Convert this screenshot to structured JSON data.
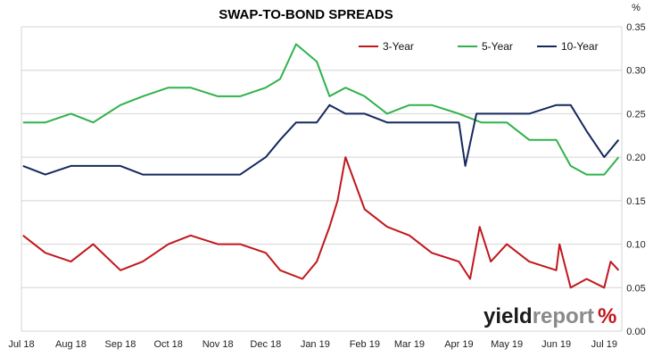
{
  "chart_data": {
    "type": "line",
    "title": "SWAP-TO-BOND SPREADS",
    "y_unit": "%",
    "ylim": [
      0,
      0.35
    ],
    "yticks": [
      "0.00",
      "0.05",
      "0.10",
      "0.15",
      "0.20",
      "0.25",
      "0.30",
      "0.35"
    ],
    "xticks": [
      "Jul 18",
      "Aug 18",
      "Sep 18",
      "Oct 18",
      "Nov 18",
      "Dec 18",
      "Jan 19",
      "Feb 19",
      "Mar 19",
      "Apr 19",
      "May 19",
      "Jun 19",
      "Jul 19"
    ],
    "x_start": "2018-07-01",
    "x_end": "2019-07-12",
    "grid": "horizontal",
    "legend_position": "top-right",
    "series": [
      {
        "name": "3-Year",
        "color": "#c0171c",
        "x": [
          "2018-07-02",
          "2018-07-16",
          "2018-08-01",
          "2018-08-15",
          "2018-09-01",
          "2018-09-15",
          "2018-10-01",
          "2018-10-15",
          "2018-11-01",
          "2018-11-15",
          "2018-12-01",
          "2018-12-10",
          "2018-12-24",
          "2019-01-02",
          "2019-01-10",
          "2019-01-15",
          "2019-01-20",
          "2019-02-01",
          "2019-02-15",
          "2019-03-01",
          "2019-03-15",
          "2019-04-01",
          "2019-04-08",
          "2019-04-14",
          "2019-04-21",
          "2019-05-01",
          "2019-05-15",
          "2019-06-01",
          "2019-06-03",
          "2019-06-10",
          "2019-06-20",
          "2019-07-01",
          "2019-07-05",
          "2019-07-10"
        ],
        "y": [
          0.11,
          0.09,
          0.08,
          0.1,
          0.07,
          0.08,
          0.1,
          0.11,
          0.1,
          0.1,
          0.09,
          0.07,
          0.06,
          0.08,
          0.12,
          0.15,
          0.2,
          0.14,
          0.12,
          0.11,
          0.09,
          0.08,
          0.06,
          0.12,
          0.08,
          0.1,
          0.08,
          0.07,
          0.1,
          0.05,
          0.06,
          0.05,
          0.08,
          0.07
        ]
      },
      {
        "name": "5-Year",
        "color": "#2fb24b",
        "x": [
          "2018-07-02",
          "2018-07-16",
          "2018-08-01",
          "2018-08-15",
          "2018-09-01",
          "2018-09-15",
          "2018-10-01",
          "2018-10-15",
          "2018-11-01",
          "2018-11-15",
          "2018-12-01",
          "2018-12-10",
          "2018-12-20",
          "2019-01-02",
          "2019-01-10",
          "2019-01-20",
          "2019-02-01",
          "2019-02-15",
          "2019-03-01",
          "2019-03-15",
          "2019-04-01",
          "2019-04-15",
          "2019-05-01",
          "2019-05-15",
          "2019-06-01",
          "2019-06-10",
          "2019-06-20",
          "2019-07-01",
          "2019-07-10"
        ],
        "y": [
          0.24,
          0.24,
          0.25,
          0.24,
          0.26,
          0.27,
          0.28,
          0.28,
          0.27,
          0.27,
          0.28,
          0.29,
          0.33,
          0.31,
          0.27,
          0.28,
          0.27,
          0.25,
          0.26,
          0.26,
          0.25,
          0.24,
          0.24,
          0.22,
          0.22,
          0.19,
          0.18,
          0.18,
          0.2
        ]
      },
      {
        "name": "10-Year",
        "color": "#16285c",
        "x": [
          "2018-07-02",
          "2018-07-16",
          "2018-08-01",
          "2018-08-15",
          "2018-09-01",
          "2018-09-15",
          "2018-10-01",
          "2018-10-15",
          "2018-11-01",
          "2018-11-15",
          "2018-12-01",
          "2018-12-10",
          "2018-12-20",
          "2019-01-02",
          "2019-01-10",
          "2019-01-20",
          "2019-02-01",
          "2019-02-15",
          "2019-03-01",
          "2019-03-15",
          "2019-04-01",
          "2019-04-05",
          "2019-04-12",
          "2019-05-01",
          "2019-05-15",
          "2019-06-01",
          "2019-06-10",
          "2019-06-20",
          "2019-07-01",
          "2019-07-10"
        ],
        "y": [
          0.19,
          0.18,
          0.19,
          0.19,
          0.19,
          0.18,
          0.18,
          0.18,
          0.18,
          0.18,
          0.2,
          0.22,
          0.24,
          0.24,
          0.26,
          0.25,
          0.25,
          0.24,
          0.24,
          0.24,
          0.24,
          0.19,
          0.25,
          0.25,
          0.25,
          0.26,
          0.26,
          0.23,
          0.2,
          0.22
        ]
      }
    ]
  },
  "logo": {
    "part1": "yield",
    "part2": "report",
    "symbol": "%",
    "color1": "#1a1a1a",
    "color2": "#8a8a8a",
    "symbol_color": "#c0171c",
    "symbol_accent": "#2fb24b"
  }
}
